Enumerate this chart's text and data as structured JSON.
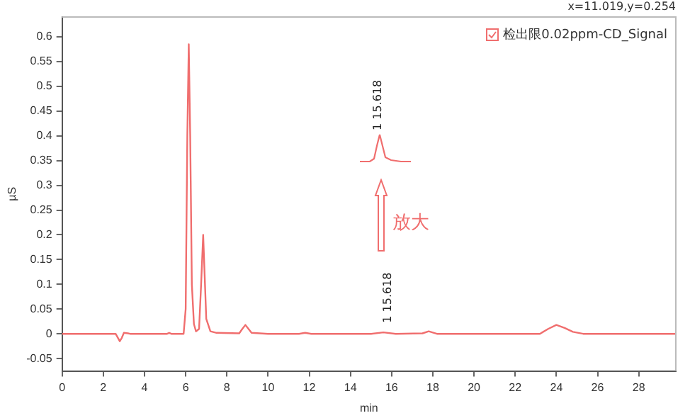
{
  "chart_data": {
    "type": "line",
    "xlabel": "min",
    "ylabel": "µS",
    "legend": "top right",
    "marker": "none",
    "line_style": "solid",
    "grid": false,
    "xlim": [
      0,
      29.8
    ],
    "xticks": [
      0,
      2,
      4,
      6,
      8,
      10,
      12,
      14,
      16,
      18,
      20,
      22,
      24,
      26,
      28
    ],
    "ylim": [
      -0.075,
      0.64
    ],
    "yticks": [
      -0.05,
      0,
      0.05,
      0.1,
      0.15,
      0.2,
      0.25,
      0.3,
      0.35,
      0.4,
      0.45,
      0.5,
      0.55,
      0.6
    ],
    "series": [
      {
        "name": "检出限0.02ppm-CD_Signal",
        "color": "#f06e6e",
        "x": [
          0,
          2.6,
          2.8,
          2.9,
          3.0,
          3.2,
          3.3,
          5.1,
          5.2,
          5.3,
          5.9,
          6.0,
          6.08,
          6.15,
          6.22,
          6.3,
          6.4,
          6.5,
          6.65,
          6.75,
          6.85,
          6.92,
          7.0,
          7.2,
          7.5,
          8.6,
          8.75,
          8.9,
          9.05,
          9.2,
          10,
          11.5,
          11.8,
          12.1,
          15.0,
          15.6,
          16.2,
          17.5,
          17.8,
          18.2,
          23.2,
          23.6,
          24.0,
          24.4,
          24.8,
          25.3,
          29.8
        ],
        "values": [
          0,
          0,
          -0.015,
          -0.008,
          0.002,
          0.001,
          0,
          0,
          0.002,
          0,
          0,
          0.05,
          0.4,
          0.585,
          0.4,
          0.1,
          0.02,
          0.005,
          0.01,
          0.1,
          0.2,
          0.12,
          0.03,
          0.005,
          0.002,
          0.001,
          0.01,
          0.018,
          0.01,
          0.002,
          0,
          0,
          0.002,
          0,
          0,
          0.003,
          0,
          0.001,
          0.005,
          0,
          0,
          0.01,
          0.018,
          0.012,
          0.004,
          0,
          0
        ]
      }
    ],
    "annotations": [
      "x=11.019,y=0.254",
      "1 15.618",
      "放大",
      {
        "text": "1 15.618",
        "x": 15.618,
        "y": 0.005
      }
    ]
  }
}
